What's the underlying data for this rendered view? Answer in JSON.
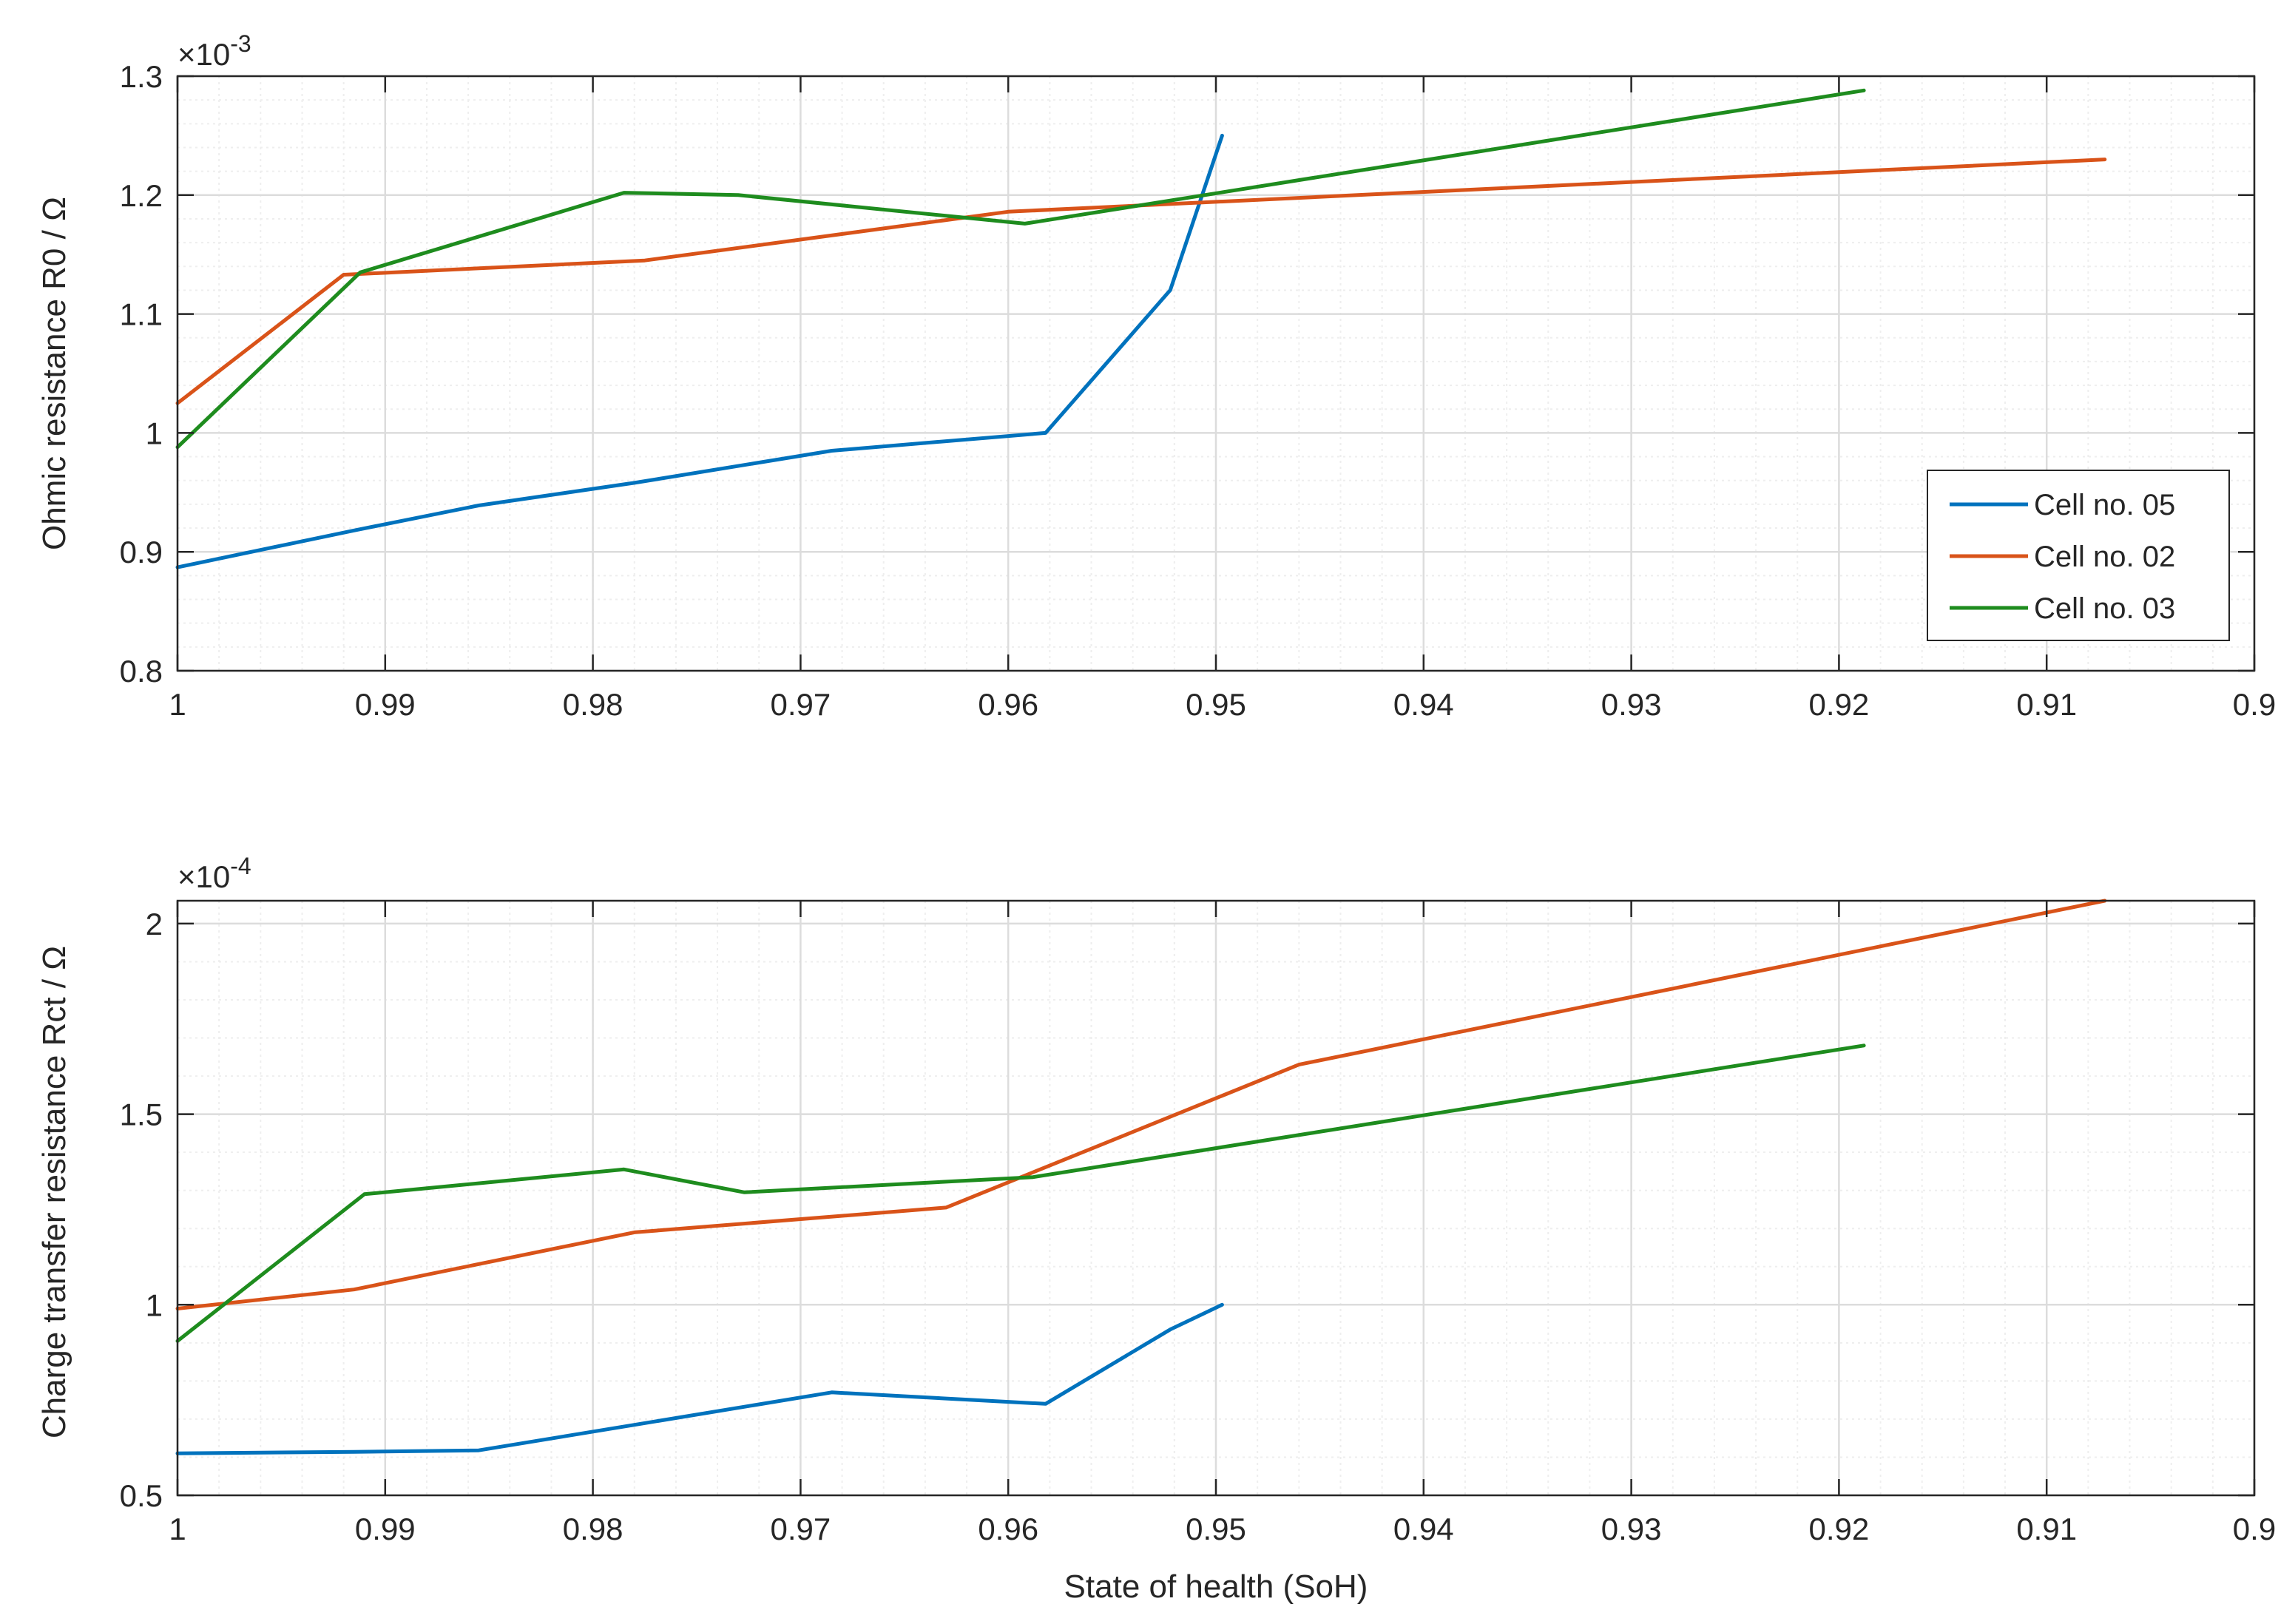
{
  "colors": {
    "cell05": "#0072BD",
    "cell02": "#D95319",
    "cell03": "#1E8C1E",
    "grid": "#DCDCDC",
    "minor_grid": "#EEEEEE",
    "axis": "#262626"
  },
  "chart_data": [
    {
      "type": "line",
      "ylabel": "Ohmic resistance R0 / Ω",
      "y_exponent_label": "×10",
      "y_exponent_power": "-3",
      "xlim": [
        1.0,
        0.9
      ],
      "x_reversed": true,
      "ylim": [
        0.8,
        1.3
      ],
      "y_scale_factor": 0.001,
      "x_ticks": [
        1.0,
        0.99,
        0.98,
        0.97,
        0.96,
        0.95,
        0.94,
        0.93,
        0.92,
        0.91,
        0.9
      ],
      "x_tick_labels": [
        "1",
        "0.99",
        "0.98",
        "0.97",
        "0.96",
        "0.95",
        "0.94",
        "0.93",
        "0.92",
        "0.91",
        "0.9"
      ],
      "y_ticks": [
        0.8,
        0.9,
        1.0,
        1.1,
        1.2,
        1.3
      ],
      "y_tick_labels": [
        "0.8",
        "0.9",
        "1",
        "1.1",
        "1.2",
        "1.3"
      ],
      "grid": true,
      "minor_grid": true,
      "legend": {
        "location": "bottom-right",
        "entries": [
          "Cell no. 05",
          "Cell no. 02",
          "Cell no. 03"
        ]
      },
      "series": [
        {
          "name": "Cell no. 05",
          "color_key": "cell05",
          "x": [
            1.0,
            0.9915,
            0.9855,
            0.978,
            0.9685,
            0.9582,
            0.9522,
            0.9497
          ],
          "y": [
            0.887,
            0.918,
            0.939,
            0.958,
            0.985,
            1.0,
            1.12,
            1.25
          ]
        },
        {
          "name": "Cell no. 02",
          "color_key": "cell02",
          "x": [
            1.0,
            0.992,
            0.9775,
            0.96,
            0.9072
          ],
          "y": [
            1.025,
            1.133,
            1.145,
            1.186,
            1.23
          ]
        },
        {
          "name": "Cell no. 03",
          "color_key": "cell03",
          "x": [
            1.0,
            0.9912,
            0.9785,
            0.973,
            0.9592,
            0.9188
          ],
          "y": [
            0.988,
            1.135,
            1.202,
            1.2,
            1.176,
            1.288
          ]
        }
      ]
    },
    {
      "type": "line",
      "xlabel": "State of health (SoH)",
      "ylabel": "Charge transfer resistance Rct / Ω",
      "y_exponent_label": "×10",
      "y_exponent_power": "-4",
      "xlim": [
        1.0,
        0.9
      ],
      "x_reversed": true,
      "ylim": [
        0.5,
        2.06
      ],
      "y_scale_factor": 0.0001,
      "x_ticks": [
        1.0,
        0.99,
        0.98,
        0.97,
        0.96,
        0.95,
        0.94,
        0.93,
        0.92,
        0.91,
        0.9
      ],
      "x_tick_labels": [
        "1",
        "0.99",
        "0.98",
        "0.97",
        "0.96",
        "0.95",
        "0.94",
        "0.93",
        "0.92",
        "0.91",
        "0.9"
      ],
      "y_ticks": [
        0.5,
        1.0,
        1.5,
        2.0
      ],
      "y_tick_labels": [
        "0.5",
        "1",
        "1.5",
        "2"
      ],
      "grid": true,
      "minor_grid": true,
      "series": [
        {
          "name": "Cell no. 05",
          "color_key": "cell05",
          "x": [
            1.0,
            0.9915,
            0.9855,
            0.978,
            0.9685,
            0.9582,
            0.9522,
            0.9497
          ],
          "y": [
            0.61,
            0.614,
            0.618,
            0.685,
            0.77,
            0.74,
            0.935,
            1.0
          ]
        },
        {
          "name": "Cell no. 02",
          "color_key": "cell02",
          "x": [
            1.0,
            0.9915,
            0.978,
            0.963,
            0.946,
            0.9072
          ],
          "y": [
            0.99,
            1.04,
            1.19,
            1.255,
            1.63,
            2.06
          ]
        },
        {
          "name": "Cell no. 03",
          "color_key": "cell03",
          "x": [
            1.0,
            0.991,
            0.9785,
            0.9727,
            0.9588,
            0.9188
          ],
          "y": [
            0.905,
            1.29,
            1.355,
            1.295,
            1.335,
            1.68
          ]
        }
      ]
    }
  ]
}
